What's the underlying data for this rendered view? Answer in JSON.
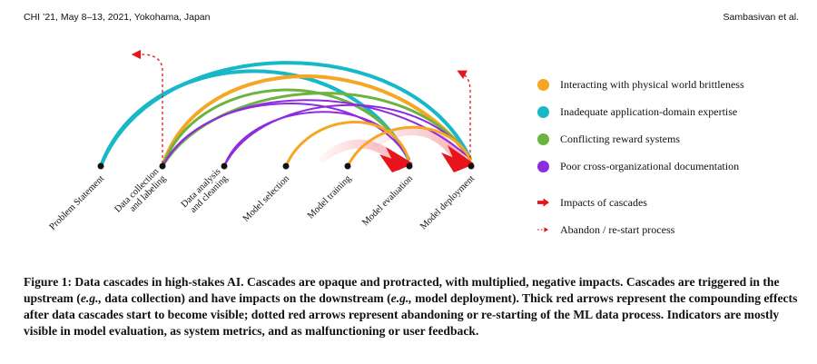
{
  "header": {
    "venue": "CHI ’21, May 8–13, 2021, Yokohama, Japan",
    "authors": "Sambasivan et al."
  },
  "pipeline": {
    "stages": [
      "Problem Statement",
      "Data collection\nand labeling",
      "Data analysis\nand cleaning",
      "Model selection",
      "Model training",
      "Model evaluation",
      "Model deployment"
    ]
  },
  "legend": {
    "items": [
      {
        "label": "Interacting with physical world brittleness",
        "color": "#F5A623"
      },
      {
        "label": "Inadequate application-domain expertise",
        "color": "#17B8C8"
      },
      {
        "label": "Conflicting reward systems",
        "color": "#6DB33F"
      },
      {
        "label": "Poor cross-organizational documentation",
        "color": "#8E2BE0"
      }
    ],
    "impacts_label": "Impacts of cascades",
    "abandon_label": "Abandon / re-start process",
    "arrow_color": "#E8141C"
  },
  "caption": {
    "label": "Figure 1: Data cascades in high-stakes AI.",
    "text_1": " Cascades are opaque and protracted, with multiplied, negative impacts. Cascades are triggered in the upstream (",
    "eg_1": "e.g.,",
    "text_2": " data collection) and have impacts on the downstream (",
    "eg_2": "e.g.,",
    "text_3": " model deployment). Thick red arrows represent the compounding effects after data cascades start to become visible; dotted red arrows represent abandoning or re-starting of the ML data process. Indicators are mostly visible in model evaluation, as system metrics, and as malfunctioning or user feedback."
  }
}
